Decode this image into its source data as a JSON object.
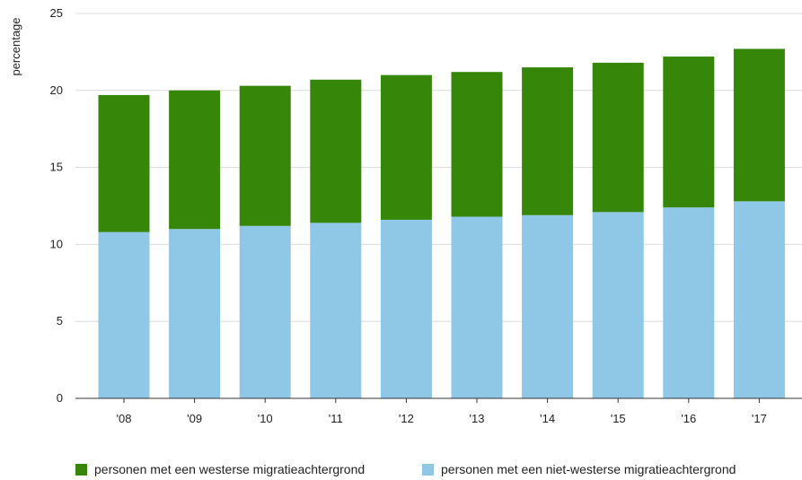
{
  "chart_data": {
    "type": "bar",
    "stacked": true,
    "ylabel": "percentage",
    "ylim": [
      0,
      25
    ],
    "yticks": [
      "0",
      "5",
      "10",
      "15",
      "20",
      "25"
    ],
    "grid": true,
    "legend_position": "bottom",
    "categories": [
      "'08",
      "'09",
      "'10",
      "'11",
      "'12",
      "'13",
      "'14",
      "'15",
      "'16",
      "'17"
    ],
    "series": [
      {
        "name": "personen met een niet-westerse migratieachtergrond",
        "color": "#8fc7e7",
        "values": [
          10.8,
          11.0,
          11.2,
          11.4,
          11.6,
          11.8,
          11.9,
          12.1,
          12.4,
          12.8
        ]
      },
      {
        "name": "personen met een westerse migratieachtergrond",
        "color": "#36860a",
        "values": [
          8.9,
          9.0,
          9.1,
          9.3,
          9.4,
          9.4,
          9.6,
          9.7,
          9.8,
          9.9
        ]
      }
    ]
  }
}
